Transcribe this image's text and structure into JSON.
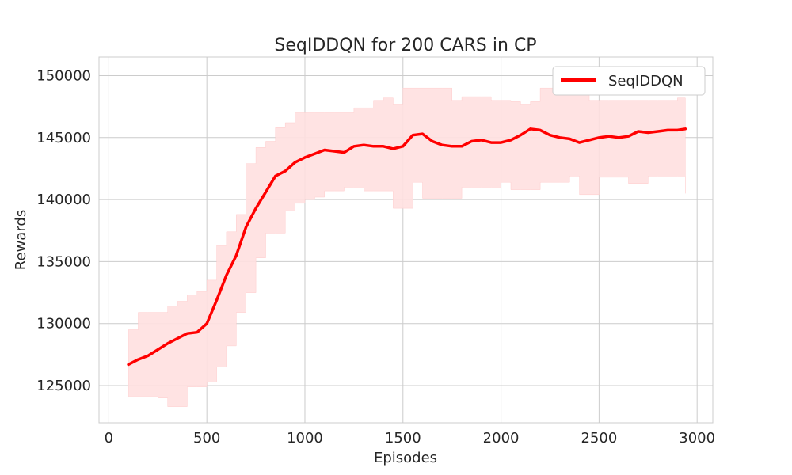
{
  "chart_data": {
    "type": "line",
    "title": "SeqIDDQN for 200 CARS in CP",
    "xlabel": "Episodes",
    "ylabel": "Rewards",
    "xlim": [
      -50,
      3080
    ],
    "ylim": [
      122000,
      151500
    ],
    "xticks": [
      0,
      500,
      1000,
      1500,
      2000,
      2500,
      3000
    ],
    "yticks": [
      125000,
      130000,
      135000,
      140000,
      145000,
      150000
    ],
    "grid": true,
    "legend": {
      "position": "top-right",
      "entries": [
        "SeqIDDQN"
      ]
    },
    "series": [
      {
        "name": "SeqIDDQN",
        "color": "#ff0000",
        "band_color": "#ffe0e0",
        "x": [
          100,
          150,
          200,
          250,
          300,
          350,
          400,
          450,
          500,
          550,
          600,
          650,
          700,
          750,
          800,
          850,
          900,
          950,
          1000,
          1050,
          1100,
          1150,
          1200,
          1250,
          1300,
          1350,
          1400,
          1450,
          1500,
          1550,
          1600,
          1650,
          1700,
          1750,
          1800,
          1850,
          1900,
          1950,
          2000,
          2050,
          2100,
          2150,
          2200,
          2250,
          2300,
          2350,
          2400,
          2450,
          2500,
          2550,
          2600,
          2650,
          2700,
          2750,
          2800,
          2850,
          2900,
          2940
        ],
        "mean": [
          126700,
          127100,
          127400,
          127900,
          128400,
          128800,
          129200,
          129300,
          130000,
          131900,
          133900,
          135500,
          137800,
          139300,
          140600,
          141900,
          142300,
          143000,
          143400,
          143700,
          144000,
          143900,
          143800,
          144300,
          144400,
          144300,
          144300,
          144100,
          144300,
          145200,
          145300,
          144700,
          144400,
          144300,
          144300,
          144700,
          144800,
          144600,
          144600,
          144800,
          145200,
          145700,
          145600,
          145200,
          145000,
          144900,
          144600,
          144800,
          145000,
          145100,
          145000,
          145100,
          145500,
          145400,
          145500,
          145600,
          145600,
          145700
        ],
        "upper": [
          129500,
          130900,
          130900,
          130900,
          131400,
          131800,
          132300,
          132600,
          133500,
          136300,
          137400,
          138800,
          142900,
          144200,
          144700,
          145800,
          146200,
          147000,
          147000,
          147000,
          147000,
          147000,
          147000,
          147400,
          147400,
          148000,
          148200,
          147700,
          149000,
          149000,
          149000,
          149000,
          149000,
          148000,
          148300,
          148300,
          148300,
          148000,
          148000,
          147900,
          147700,
          147900,
          149000,
          149000,
          149000,
          149000,
          149000,
          148000,
          148000,
          148000,
          148000,
          148000,
          148000,
          148000,
          148000,
          148000,
          148200,
          148200
        ],
        "lower": [
          124100,
          124100,
          124100,
          124000,
          123300,
          123300,
          124900,
          124900,
          125300,
          126500,
          128200,
          130900,
          132500,
          135300,
          137300,
          137300,
          139100,
          139700,
          140000,
          140200,
          140700,
          140700,
          141000,
          141000,
          140700,
          140700,
          140700,
          139300,
          139300,
          141400,
          140100,
          140100,
          140100,
          140100,
          141000,
          141000,
          141000,
          141000,
          141400,
          140800,
          140800,
          140800,
          141400,
          141400,
          141400,
          141900,
          140400,
          140400,
          141800,
          141800,
          141800,
          141300,
          141300,
          141900,
          141900,
          141900,
          141900,
          140500
        ]
      }
    ]
  }
}
